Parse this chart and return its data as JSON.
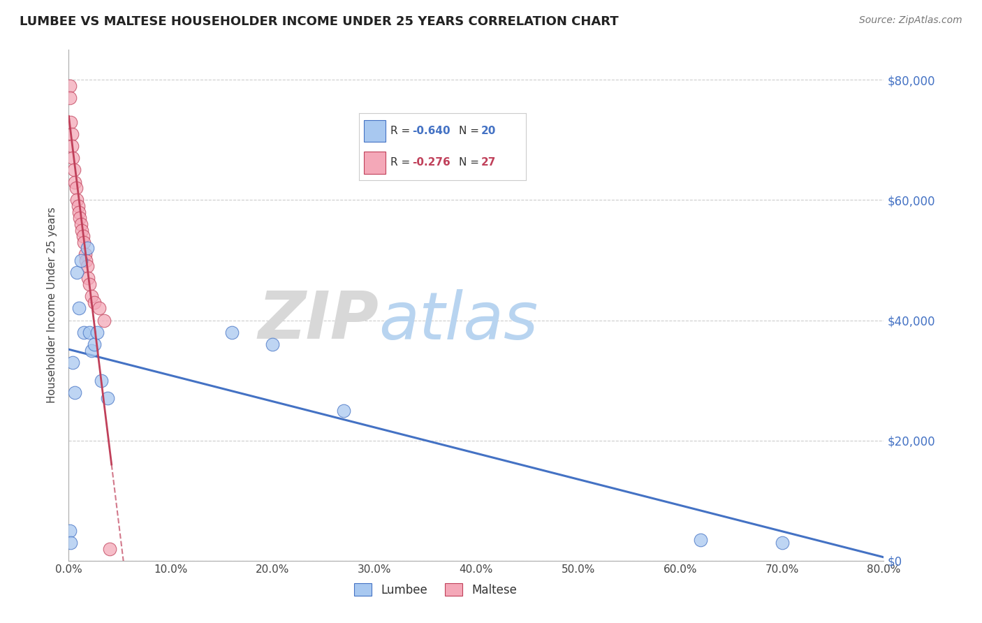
{
  "title": "LUMBEE VS MALTESE HOUSEHOLDER INCOME UNDER 25 YEARS CORRELATION CHART",
  "source": "Source: ZipAtlas.com",
  "ylabel": "Householder Income Under 25 years",
  "lumbee_x": [
    0.001,
    0.002,
    0.004,
    0.006,
    0.008,
    0.01,
    0.012,
    0.015,
    0.018,
    0.02,
    0.022,
    0.025,
    0.028,
    0.032,
    0.038,
    0.16,
    0.2,
    0.27,
    0.62,
    0.7
  ],
  "lumbee_y": [
    5000,
    3000,
    33000,
    28000,
    48000,
    42000,
    50000,
    38000,
    52000,
    38000,
    35000,
    36000,
    38000,
    30000,
    27000,
    38000,
    36000,
    25000,
    3500,
    3000
  ],
  "maltese_x": [
    0.001,
    0.001,
    0.002,
    0.003,
    0.003,
    0.004,
    0.005,
    0.006,
    0.007,
    0.008,
    0.009,
    0.01,
    0.011,
    0.012,
    0.013,
    0.014,
    0.015,
    0.016,
    0.017,
    0.018,
    0.019,
    0.02,
    0.022,
    0.025,
    0.03,
    0.035,
    0.04
  ],
  "maltese_y": [
    79000,
    77000,
    73000,
    71000,
    69000,
    67000,
    65000,
    63000,
    62000,
    60000,
    59000,
    58000,
    57000,
    56000,
    55000,
    54000,
    53000,
    51000,
    50000,
    49000,
    47000,
    46000,
    44000,
    43000,
    42000,
    40000,
    2000
  ],
  "lumbee_color": "#a8c8f0",
  "maltese_color": "#f4a8b8",
  "lumbee_line_color": "#4472c4",
  "maltese_line_color": "#c0405a",
  "lumbee_R": -0.64,
  "lumbee_N": 20,
  "maltese_R": -0.276,
  "maltese_N": 27,
  "xlim": [
    0,
    0.8
  ],
  "ylim": [
    0,
    85000
  ],
  "yticks": [
    0,
    20000,
    40000,
    60000,
    80000
  ],
  "ytick_labels": [
    "$0",
    "$20,000",
    "$40,000",
    "$60,000",
    "$80,000"
  ],
  "xticks": [
    0.0,
    0.1,
    0.2,
    0.3,
    0.4,
    0.5,
    0.6,
    0.7,
    0.8
  ],
  "xtick_labels": [
    "0.0%",
    "10.0%",
    "20.0%",
    "30.0%",
    "40.0%",
    "50.0%",
    "60.0%",
    "70.0%",
    "80.0%"
  ],
  "watermark_zip": "ZIP",
  "watermark_atlas": "atlas",
  "legend_labels": [
    "Lumbee",
    "Maltese"
  ],
  "background_color": "#ffffff",
  "grid_color": "#cccccc"
}
